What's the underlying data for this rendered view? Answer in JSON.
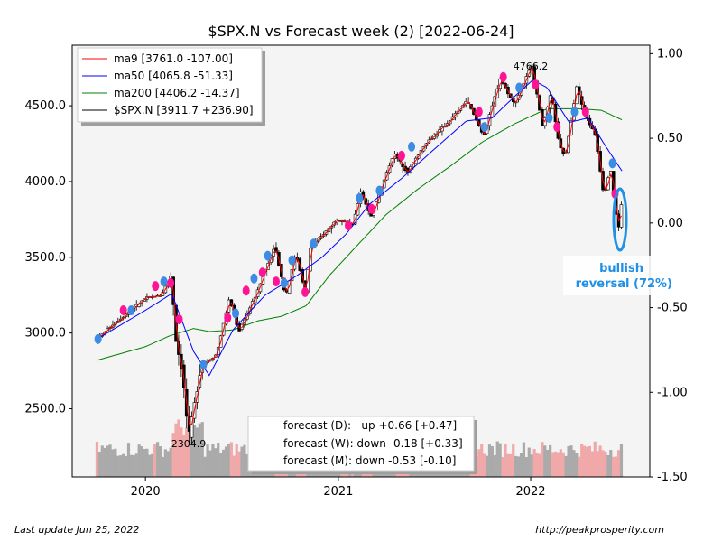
{
  "footer": {
    "last_update": "Last update Jun 25, 2022",
    "source": "http://peakprosperity.com"
  },
  "chart_data": {
    "type": "candlestick",
    "title": "$SPX.N vs Forecast week (2) [2022-06-24]",
    "xlabel": "",
    "ylabel": "",
    "x_ticks": [
      "2020",
      "2021",
      "2022"
    ],
    "y_left_ticks": [
      "2500.0",
      "3000.0",
      "3500.0",
      "4000.0",
      "4500.0"
    ],
    "y_left_lim": [
      2050,
      4900
    ],
    "y_right_ticks": [
      "1.00",
      "0.50",
      "0.00",
      "-0.50",
      "-1.00",
      "-1.50"
    ],
    "y_right_lim": [
      -1.5,
      1.05
    ],
    "x_lim": [
      "2019-08-15",
      "2022-08-15"
    ],
    "grid": false,
    "legend_position": "top-left",
    "legend": [
      {
        "label": "ma9 [3761.0 -107.00]",
        "color": "#ff0000"
      },
      {
        "label": "ma50 [4065.8 -51.33]",
        "color": "#0000ff"
      },
      {
        "label": "ma200 [4406.2 -14.37]",
        "color": "#008000"
      },
      {
        "label": "$SPX.N [3911.7 +236.90]",
        "color": "#000000"
      }
    ],
    "annotations": {
      "max_label": "4766.2",
      "min_label": "2304.9",
      "signal_text_line1": "bullish",
      "signal_text_line2": "reversal (72%)"
    },
    "forecast_box": [
      "forecast (D):   up +0.66 [+0.47]",
      "forecast (W): down -0.18 [+0.33]",
      "forecast (M): down -0.53 [-0.10]"
    ],
    "colors": {
      "ma9": "#ff0000",
      "ma50": "#0000ff",
      "ma200": "#008000",
      "price": "#000000",
      "plot_bg": "#f4f4f4",
      "signal": "#1e90e6",
      "marker_pink": "#ff1493",
      "marker_blue": "#3c8ce6",
      "volume_up": "#aaaaaa",
      "volume_down": "#f0a8a8"
    },
    "price_anchors": [
      [
        "2019-10-01",
        2960
      ],
      [
        "2019-11-01",
        3060
      ],
      [
        "2019-12-01",
        3140
      ],
      [
        "2020-01-01",
        3230
      ],
      [
        "2020-01-31",
        3250
      ],
      [
        "2020-02-19",
        3386
      ],
      [
        "2020-02-28",
        2950
      ],
      [
        "2020-03-11",
        2740
      ],
      [
        "2020-03-23",
        2305
      ],
      [
        "2020-04-15",
        2780
      ],
      [
        "2020-05-15",
        2860
      ],
      [
        "2020-06-08",
        3230
      ],
      [
        "2020-06-26",
        3010
      ],
      [
        "2020-07-31",
        3270
      ],
      [
        "2020-09-02",
        3580
      ],
      [
        "2020-09-23",
        3240
      ],
      [
        "2020-10-12",
        3530
      ],
      [
        "2020-10-30",
        3270
      ],
      [
        "2020-11-09",
        3560
      ],
      [
        "2020-12-31",
        3756
      ],
      [
        "2021-01-29",
        3714
      ],
      [
        "2021-02-12",
        3935
      ],
      [
        "2021-03-04",
        3768
      ],
      [
        "2021-04-16",
        4185
      ],
      [
        "2021-05-12",
        4063
      ],
      [
        "2021-06-15",
        4250
      ],
      [
        "2021-07-30",
        4395
      ],
      [
        "2021-09-02",
        4537
      ],
      [
        "2021-10-04",
        4300
      ],
      [
        "2021-11-04",
        4680
      ],
      [
        "2021-12-01",
        4510
      ],
      [
        "2022-01-03",
        4766
      ],
      [
        "2022-01-24",
        4355
      ],
      [
        "2022-02-09",
        4587
      ],
      [
        "2022-02-24",
        4230
      ],
      [
        "2022-03-08",
        4170
      ],
      [
        "2022-03-29",
        4630
      ],
      [
        "2022-04-13",
        4450
      ],
      [
        "2022-05-04",
        4300
      ],
      [
        "2022-05-20",
        3900
      ],
      [
        "2022-06-01",
        4100
      ],
      [
        "2022-06-16",
        3667
      ],
      [
        "2022-06-24",
        3911
      ]
    ],
    "ma50_anchors": [
      [
        "2019-10-01",
        2960
      ],
      [
        "2020-01-01",
        3150
      ],
      [
        "2020-02-20",
        3260
      ],
      [
        "2020-04-01",
        2880
      ],
      [
        "2020-05-01",
        2720
      ],
      [
        "2020-06-15",
        3020
      ],
      [
        "2020-08-15",
        3250
      ],
      [
        "2020-10-15",
        3380
      ],
      [
        "2020-12-01",
        3500
      ],
      [
        "2021-01-15",
        3650
      ],
      [
        "2021-03-01",
        3850
      ],
      [
        "2021-05-01",
        4020
      ],
      [
        "2021-07-01",
        4210
      ],
      [
        "2021-09-01",
        4400
      ],
      [
        "2021-10-20",
        4420
      ],
      [
        "2021-12-01",
        4560
      ],
      [
        "2022-01-05",
        4670
      ],
      [
        "2022-02-01",
        4620
      ],
      [
        "2022-03-15",
        4390
      ],
      [
        "2022-04-20",
        4420
      ],
      [
        "2022-05-20",
        4250
      ],
      [
        "2022-06-24",
        4065
      ]
    ],
    "ma200_anchors": [
      [
        "2019-10-01",
        2820
      ],
      [
        "2020-01-01",
        2910
      ],
      [
        "2020-02-15",
        2980
      ],
      [
        "2020-04-01",
        3030
      ],
      [
        "2020-05-01",
        3010
      ],
      [
        "2020-06-15",
        3020
      ],
      [
        "2020-08-01",
        3080
      ],
      [
        "2020-09-15",
        3110
      ],
      [
        "2020-11-01",
        3180
      ],
      [
        "2020-12-15",
        3380
      ],
      [
        "2021-02-01",
        3560
      ],
      [
        "2021-04-01",
        3780
      ],
      [
        "2021-06-01",
        3950
      ],
      [
        "2021-08-01",
        4100
      ],
      [
        "2021-10-01",
        4260
      ],
      [
        "2021-12-01",
        4380
      ],
      [
        "2022-02-01",
        4480
      ],
      [
        "2022-04-01",
        4480
      ],
      [
        "2022-05-15",
        4470
      ],
      [
        "2022-06-24",
        4406
      ]
    ],
    "indicator_markers": [
      {
        "date": "2019-10-03",
        "value": 2960,
        "color": "blue"
      },
      {
        "date": "2019-11-20",
        "value": 3150,
        "color": "pink"
      },
      {
        "date": "2019-12-05",
        "value": 3150,
        "color": "blue"
      },
      {
        "date": "2020-01-20",
        "value": 3310,
        "color": "pink"
      },
      {
        "date": "2020-02-05",
        "value": 3340,
        "color": "blue"
      },
      {
        "date": "2020-02-18",
        "value": 3330,
        "color": "pink"
      },
      {
        "date": "2020-03-05",
        "value": 3090,
        "color": "pink"
      },
      {
        "date": "2020-04-20",
        "value": 2790,
        "color": "blue"
      },
      {
        "date": "2020-06-05",
        "value": 3100,
        "color": "pink"
      },
      {
        "date": "2020-06-20",
        "value": 3130,
        "color": "blue"
      },
      {
        "date": "2020-07-10",
        "value": 3280,
        "color": "pink"
      },
      {
        "date": "2020-07-25",
        "value": 3360,
        "color": "blue"
      },
      {
        "date": "2020-08-10",
        "value": 3400,
        "color": "pink"
      },
      {
        "date": "2020-08-20",
        "value": 3510,
        "color": "blue"
      },
      {
        "date": "2020-09-05",
        "value": 3340,
        "color": "pink"
      },
      {
        "date": "2020-09-20",
        "value": 3330,
        "color": "blue"
      },
      {
        "date": "2020-10-05",
        "value": 3480,
        "color": "blue"
      },
      {
        "date": "2020-10-30",
        "value": 3270,
        "color": "pink"
      },
      {
        "date": "2020-11-15",
        "value": 3590,
        "color": "blue"
      },
      {
        "date": "2021-01-20",
        "value": 3710,
        "color": "pink"
      },
      {
        "date": "2021-02-10",
        "value": 3890,
        "color": "blue"
      },
      {
        "date": "2021-03-05",
        "value": 3820,
        "color": "pink"
      },
      {
        "date": "2021-03-20",
        "value": 3940,
        "color": "blue"
      },
      {
        "date": "2021-05-01",
        "value": 4170,
        "color": "pink"
      },
      {
        "date": "2021-05-20",
        "value": 4230,
        "color": "blue"
      },
      {
        "date": "2021-09-25",
        "value": 4460,
        "color": "pink"
      },
      {
        "date": "2021-10-05",
        "value": 4360,
        "color": "blue"
      },
      {
        "date": "2021-11-10",
        "value": 4690,
        "color": "pink"
      },
      {
        "date": "2021-12-10",
        "value": 4620,
        "color": "blue"
      },
      {
        "date": "2022-01-10",
        "value": 4640,
        "color": "pink"
      },
      {
        "date": "2022-02-05",
        "value": 4420,
        "color": "blue"
      },
      {
        "date": "2022-02-20",
        "value": 4360,
        "color": "pink"
      },
      {
        "date": "2022-03-25",
        "value": 4460,
        "color": "blue"
      },
      {
        "date": "2022-04-15",
        "value": 4460,
        "color": "pink"
      },
      {
        "date": "2022-06-05",
        "value": 4120,
        "color": "blue"
      },
      {
        "date": "2022-06-10",
        "value": 3920,
        "color": "pink"
      }
    ],
    "signal_marker": {
      "date": "2022-06-22",
      "value": 3760
    }
  }
}
